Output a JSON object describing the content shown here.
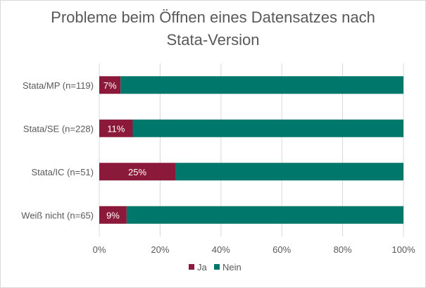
{
  "chart_data": {
    "type": "bar",
    "orientation": "horizontal",
    "stacked": true,
    "title_lines": [
      "Probleme beim Öffnen eines Datensatzes nach",
      "Stata-Version"
    ],
    "categories": [
      "Stata/MP (n=119)",
      "Stata/SE (n=228)",
      "Stata/IC (n=51)",
      "Weiß nicht (n=65)"
    ],
    "series": [
      {
        "name": "Ja",
        "values": [
          7,
          11,
          25,
          9
        ],
        "labels": [
          "7%",
          "11%",
          "25%",
          "9%"
        ],
        "color": "#8b1a3a"
      },
      {
        "name": "Nein",
        "values": [
          93,
          89,
          75,
          91
        ],
        "color": "#00776b"
      }
    ],
    "xlim": [
      0,
      100
    ],
    "x_ticks": [
      "0%",
      "20%",
      "40%",
      "60%",
      "80%",
      "100%"
    ],
    "grid": true,
    "legend": "bottom"
  }
}
